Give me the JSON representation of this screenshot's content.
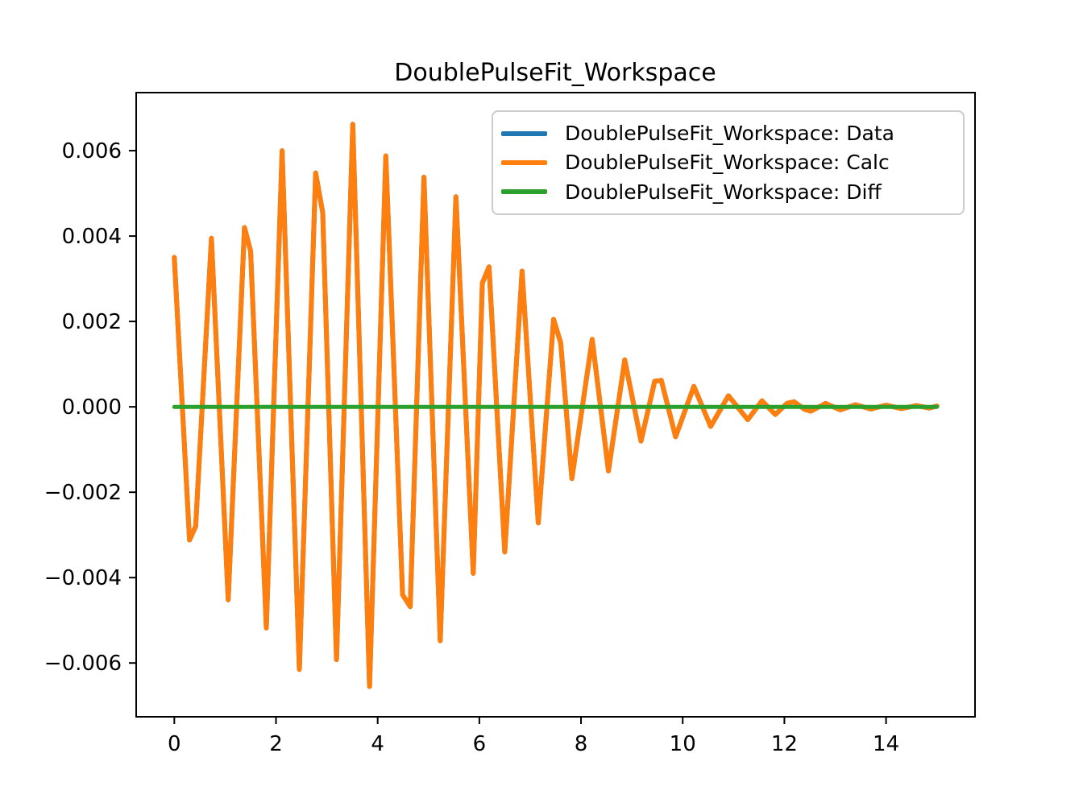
{
  "title": "DoublePulseFit_Workspace",
  "legend": {
    "entries": [
      {
        "label": "DoublePulseFit_Workspace: Data",
        "color": "#1f77b4"
      },
      {
        "label": "DoublePulseFit_Workspace: Calc",
        "color": "#ff7f0e"
      },
      {
        "label": "DoublePulseFit_Workspace: Diff",
        "color": "#2ca02c"
      }
    ]
  },
  "axes": {
    "xticks": [
      0,
      2,
      4,
      6,
      8,
      10,
      12,
      14
    ],
    "xtick_labels": [
      "0",
      "2",
      "4",
      "6",
      "8",
      "10",
      "12",
      "14"
    ],
    "yticks": [
      0.006,
      0.004,
      0.002,
      0.0,
      -0.002,
      -0.004,
      -0.006
    ],
    "ytick_labels": [
      "0.006",
      "0.004",
      "0.002",
      "0.000",
      "−0.002",
      "−0.004",
      "−0.006"
    ]
  },
  "chart_data": {
    "type": "line",
    "title": "DoublePulseFit_Workspace",
    "xlabel": "",
    "ylabel": "",
    "xlim": [
      -0.75,
      15.75
    ],
    "ylim": [
      -0.00726,
      0.00736
    ],
    "grid": false,
    "legend_position": "upper right",
    "series": [
      {
        "key": "data",
        "name": "DoublePulseFit_Workspace: Data",
        "color": "#1f77b4",
        "note": "fully occluded by Calc series (identical values)",
        "same_as": "DoublePulseFit_Workspace: Calc"
      },
      {
        "key": "calc",
        "name": "DoublePulseFit_Workspace: Calc",
        "color": "#ff7f0e",
        "x": [
          0.0,
          0.3,
          0.42,
          0.73,
          1.06,
          1.38,
          1.5,
          1.81,
          2.12,
          2.46,
          2.78,
          2.92,
          3.19,
          3.51,
          3.84,
          4.16,
          4.49,
          4.64,
          4.91,
          5.23,
          5.54,
          5.88,
          6.06,
          6.19,
          6.5,
          6.84,
          7.16,
          7.46,
          7.6,
          7.82,
          8.22,
          8.54,
          8.86,
          9.18,
          9.45,
          9.58,
          9.86,
          10.22,
          10.55,
          10.9,
          11.28,
          11.56,
          11.82,
          12.05,
          12.19,
          12.4,
          12.52,
          12.81,
          13.1,
          13.4,
          13.7,
          14.0,
          14.3,
          14.6,
          14.85,
          15.0
        ],
        "y": [
          0.0035,
          -0.00312,
          -0.0028,
          0.00395,
          -0.00452,
          0.0042,
          0.00365,
          -0.00518,
          0.006,
          -0.00615,
          0.00548,
          0.00455,
          -0.00592,
          0.00662,
          -0.00655,
          0.00588,
          -0.0044,
          -0.00468,
          0.00538,
          -0.00548,
          0.00492,
          -0.0039,
          0.0029,
          0.00328,
          -0.0034,
          0.00318,
          -0.00272,
          0.00205,
          0.0015,
          -0.00168,
          0.00158,
          -0.0015,
          0.0011,
          -0.0008,
          0.0006,
          0.00062,
          -0.0007,
          0.00048,
          -0.00046,
          0.00026,
          -0.0003,
          0.00014,
          -0.00018,
          8e-05,
          0.00012,
          -6e-05,
          -0.0001,
          8e-05,
          -7e-05,
          5e-05,
          -5e-05,
          4e-05,
          -4e-05,
          3e-05,
          -3e-05,
          2e-05
        ]
      },
      {
        "key": "diff",
        "name": "DoublePulseFit_Workspace: Diff",
        "color": "#2ca02c",
        "x": [
          0,
          15
        ],
        "y": [
          0,
          0
        ]
      }
    ]
  }
}
